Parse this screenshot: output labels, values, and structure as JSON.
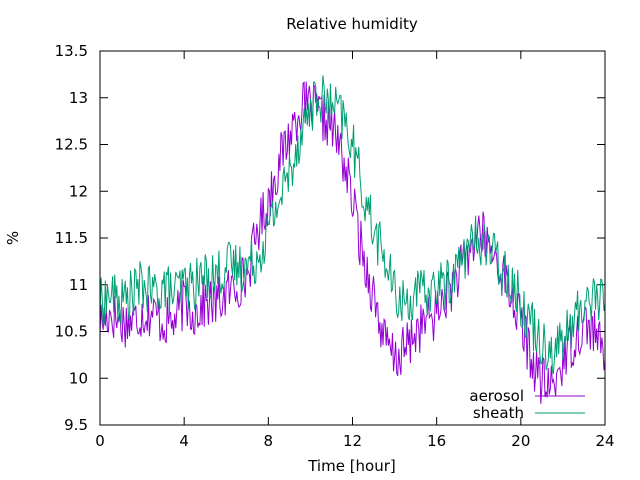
{
  "chart_data": {
    "type": "line",
    "title": "Relative humidity",
    "xlabel": "Time [hour]",
    "ylabel": "%",
    "xlim": [
      0,
      24
    ],
    "ylim": [
      9.5,
      13.5
    ],
    "xticks": [
      0,
      4,
      8,
      12,
      16,
      20,
      24
    ],
    "yticks": [
      9.5,
      10,
      10.5,
      11,
      11.5,
      12,
      12.5,
      13,
      13.5
    ],
    "grid": false,
    "legend_position": "bottom-right",
    "x": [
      0,
      0.5,
      1,
      1.5,
      2,
      2.5,
      3,
      3.5,
      4,
      4.5,
      5,
      5.5,
      6,
      6.5,
      7,
      7.5,
      8,
      8.5,
      9,
      9.5,
      10,
      10.5,
      11,
      11.5,
      12,
      12.5,
      13,
      13.5,
      14,
      14.5,
      15,
      15.5,
      16,
      16.5,
      17,
      17.5,
      18,
      18.5,
      19,
      19.5,
      20,
      20.5,
      21,
      21.5,
      22,
      22.5,
      23,
      23.5,
      24
    ],
    "series": [
      {
        "name": "aerosol",
        "color": "#9400d3",
        "values": [
          10.6,
          10.7,
          10.6,
          10.6,
          10.7,
          10.7,
          10.6,
          10.6,
          10.8,
          10.7,
          10.8,
          10.8,
          10.9,
          11.0,
          11.1,
          11.6,
          11.9,
          12.3,
          12.6,
          12.9,
          12.9,
          12.8,
          12.7,
          12.4,
          11.9,
          11.3,
          10.9,
          10.4,
          10.2,
          10.3,
          10.5,
          10.6,
          10.7,
          10.9,
          11.1,
          11.3,
          11.6,
          11.4,
          11.2,
          10.9,
          10.6,
          10.2,
          9.95,
          9.9,
          10.2,
          10.4,
          10.6,
          10.5,
          10.2
        ]
      },
      {
        "name": "sheath",
        "color": "#009e73",
        "values": [
          10.8,
          10.9,
          10.8,
          10.9,
          11.0,
          10.9,
          11.0,
          10.9,
          11.0,
          11.0,
          11.1,
          11.1,
          11.2,
          11.2,
          11.2,
          11.3,
          11.6,
          11.9,
          12.2,
          12.6,
          12.9,
          13.0,
          12.9,
          12.8,
          12.5,
          12.0,
          11.6,
          11.3,
          10.9,
          10.8,
          10.9,
          10.9,
          11.0,
          11.0,
          11.2,
          11.4,
          11.5,
          11.4,
          11.2,
          11.1,
          10.8,
          10.6,
          10.4,
          10.3,
          10.4,
          10.6,
          10.8,
          10.9,
          10.8
        ]
      }
    ]
  }
}
